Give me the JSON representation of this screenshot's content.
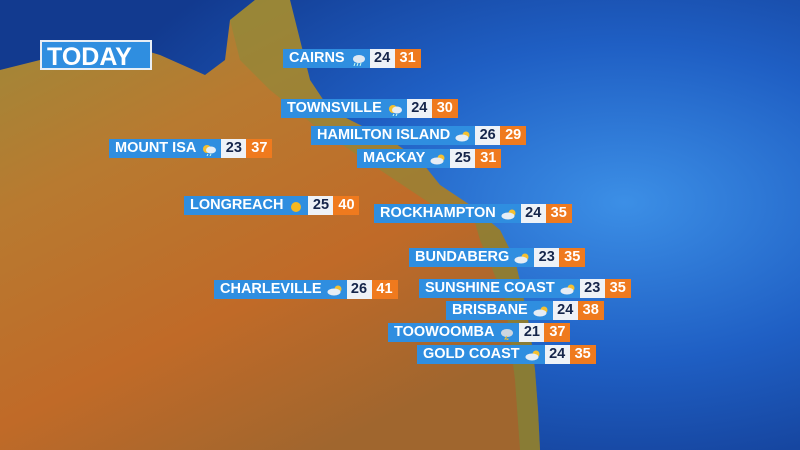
{
  "title": "TODAY",
  "colors": {
    "label_bg": "#2f8ee0",
    "min_bg": "#eef2f7",
    "max_bg": "#ef7a1e",
    "ocean": "#1a4fb0",
    "land": "#b8742c"
  },
  "cities": [
    {
      "name": "CAIRNS",
      "icon": "showers-icon",
      "min": "24",
      "max": "31"
    },
    {
      "name": "TOWNSVILLE",
      "icon": "sun-showers-icon",
      "min": "24",
      "max": "30"
    },
    {
      "name": "HAMILTON ISLAND",
      "icon": "partly-cloudy-icon",
      "min": "26",
      "max": "29"
    },
    {
      "name": "MACKAY",
      "icon": "partly-cloudy-icon",
      "min": "25",
      "max": "31"
    },
    {
      "name": "MOUNT ISA",
      "icon": "sun-showers-icon",
      "min": "23",
      "max": "37"
    },
    {
      "name": "LONGREACH",
      "icon": "sunny-icon",
      "min": "25",
      "max": "40"
    },
    {
      "name": "ROCKHAMPTON",
      "icon": "partly-cloudy-icon",
      "min": "24",
      "max": "35"
    },
    {
      "name": "BUNDABERG",
      "icon": "partly-cloudy-icon",
      "min": "23",
      "max": "35"
    },
    {
      "name": "CHARLEVILLE",
      "icon": "partly-cloudy-icon",
      "min": "26",
      "max": "41"
    },
    {
      "name": "SUNSHINE COAST",
      "icon": "partly-cloudy-icon",
      "min": "23",
      "max": "35"
    },
    {
      "name": "BRISBANE",
      "icon": "partly-cloudy-icon",
      "min": "24",
      "max": "38"
    },
    {
      "name": "TOOWOOMBA",
      "icon": "storm-icon",
      "min": "21",
      "max": "37"
    },
    {
      "name": "GOLD COAST",
      "icon": "partly-cloudy-icon",
      "min": "24",
      "max": "35"
    }
  ]
}
